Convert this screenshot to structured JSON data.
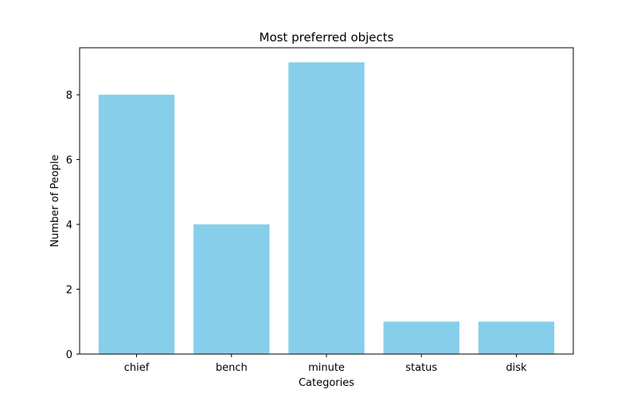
{
  "chart_data": {
    "type": "bar",
    "title": "Most preferred objects",
    "xlabel": "Categories",
    "ylabel": "Number of People",
    "categories": [
      "chief",
      "bench",
      "minute",
      "status",
      "disk"
    ],
    "values": [
      8,
      4,
      9,
      1,
      1
    ],
    "ylim": [
      0,
      9.45
    ],
    "yticks": [
      0,
      2,
      4,
      6,
      8
    ],
    "bar_color": "#87CEEB",
    "grid": false,
    "legend": "none"
  }
}
